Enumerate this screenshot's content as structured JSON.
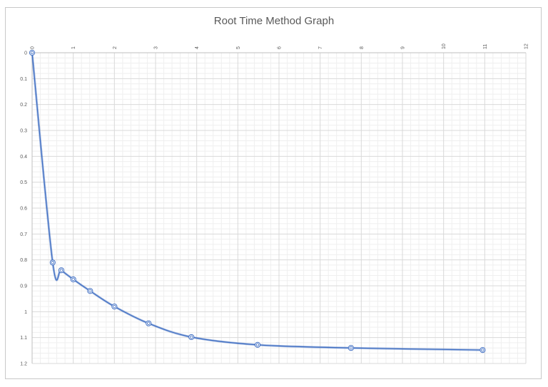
{
  "chart_data": {
    "type": "scatter",
    "title": "Root Time Method Graph",
    "xlabel": "",
    "ylabel": "",
    "xlim": [
      0,
      12
    ],
    "ylim": [
      0,
      1.2
    ],
    "y_inverted": true,
    "x_axis_position": "top",
    "x_tick_labels_rotated": true,
    "grid": {
      "major": true,
      "minor": true
    },
    "legend": "none",
    "line_style": "smooth line with circle markers",
    "series_color": "#4472c4",
    "x_ticks": [
      "0",
      "1",
      "2",
      "3",
      "4",
      "5",
      "6",
      "7",
      "8",
      "9",
      "10",
      "11",
      "12"
    ],
    "y_ticks": [
      "0",
      "0.1",
      "0.2",
      "0.3",
      "0.4",
      "0.5",
      "0.6",
      "0.7",
      "0.8",
      "0.9",
      "1",
      "1.1",
      "1.2"
    ],
    "series": [
      {
        "x": [
          0,
          0.5,
          0.71,
          1.0,
          1.41,
          2.0,
          2.83,
          3.87,
          5.48,
          7.75,
          10.95
        ],
        "y": [
          0,
          0.81,
          0.84,
          0.875,
          0.92,
          0.98,
          1.045,
          1.098,
          1.128,
          1.14,
          1.148
        ]
      }
    ]
  }
}
